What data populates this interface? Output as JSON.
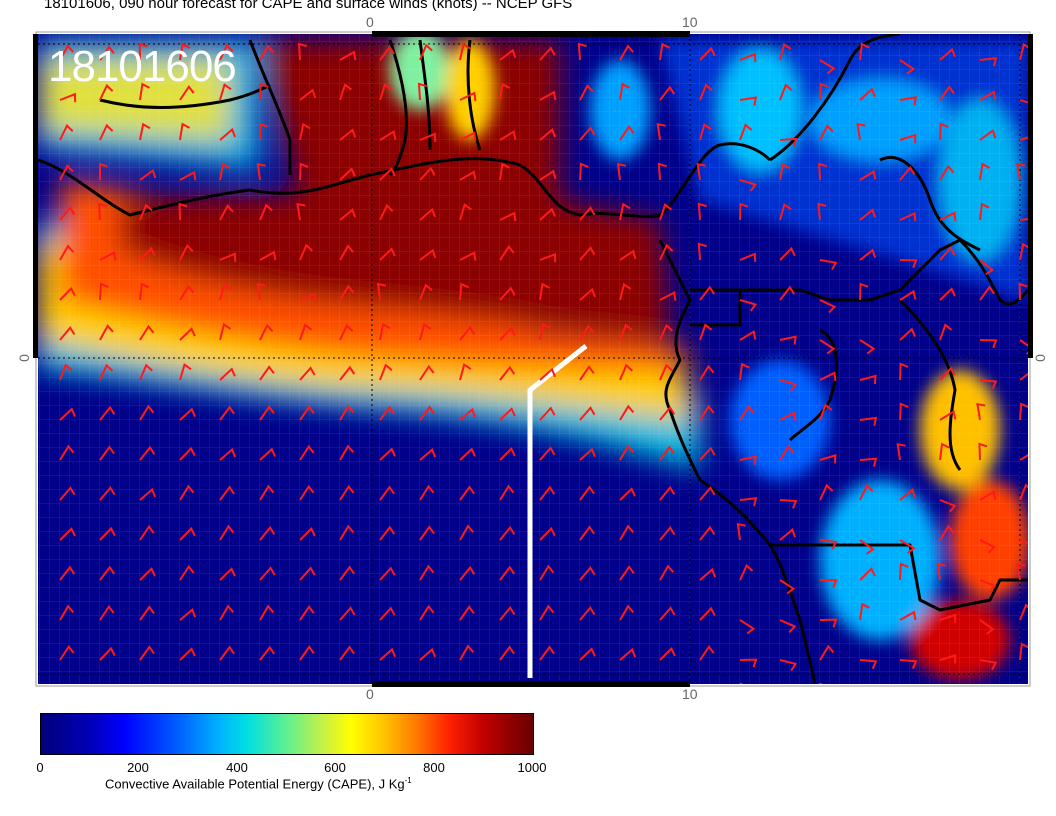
{
  "title": "18101606, 090 hour forecast for CAPE and surface winds (knots) -- NCEP GFS",
  "stamp": "18101606",
  "lon_labels": {
    "zero": "0",
    "ten": "10"
  },
  "lat_label": "0",
  "colorbar": {
    "ticks": [
      "0",
      "200",
      "400",
      "600",
      "800",
      "1000"
    ],
    "title_main": "Convective Available Potential Energy (CAPE), J Kg",
    "title_sup": "-1"
  },
  "colors": {
    "low": "#00007a",
    "mid": "#00e0e0",
    "high": "#8b0000",
    "barb": "#ff1a1a",
    "coast": "#000000",
    "track": "#ffffff"
  }
}
